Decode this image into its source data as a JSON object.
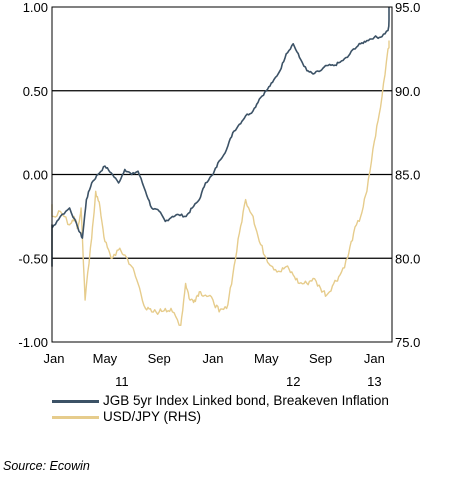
{
  "chart_data": {
    "type": "line",
    "x_tick_labels": [
      "Jan",
      "May",
      "Sep",
      "Jan",
      "May",
      "Sep",
      "Jan"
    ],
    "year_labels": [
      "11",
      "12",
      "13"
    ],
    "left_axis": {
      "ylim": [
        -1.0,
        1.0
      ],
      "ticks": [
        "1.00",
        "0.50",
        "0.00",
        "-0.50",
        "-1.00"
      ]
    },
    "right_axis": {
      "ylim": [
        75.0,
        95.0
      ],
      "ticks": [
        "95.0",
        "90.0",
        "85.0",
        "80.0",
        "75.0"
      ]
    },
    "gridlines_at": [
      0.5,
      0.0,
      -0.5
    ],
    "series": [
      {
        "name": "JGB 5yr Index Linked bond, Breakeven Inflation",
        "axis": "left",
        "color": "#3c5266",
        "x": [
          "2010-11-01",
          "2010-11-20",
          "2010-12-10",
          "2011-01-01",
          "2011-01-20",
          "2011-02-10",
          "2011-03-01",
          "2011-03-11",
          "2011-03-20",
          "2011-04-01",
          "2011-04-15",
          "2011-05-01",
          "2011-05-15",
          "2011-06-01",
          "2011-06-15",
          "2011-07-01",
          "2011-07-15",
          "2011-08-01",
          "2011-08-15",
          "2011-09-01",
          "2011-09-15",
          "2011-10-01",
          "2011-10-15",
          "2011-11-01",
          "2011-11-15",
          "2011-12-01",
          "2011-12-15",
          "2012-01-01",
          "2012-01-15",
          "2012-02-01",
          "2012-02-15",
          "2012-03-01",
          "2012-03-15",
          "2012-04-01",
          "2012-04-15",
          "2012-05-01",
          "2012-05-15",
          "2012-06-01",
          "2012-06-15",
          "2012-07-01",
          "2012-07-15",
          "2012-08-01",
          "2012-08-15",
          "2012-09-01",
          "2012-09-15",
          "2012-10-01",
          "2012-10-15",
          "2012-11-01",
          "2012-11-15",
          "2012-12-01",
          "2012-12-15",
          "2013-01-01",
          "2013-01-15",
          "2013-02-01",
          "2013-02-10"
        ],
        "values": [
          -0.55,
          -0.4,
          -0.3,
          -0.32,
          -0.25,
          -0.2,
          -0.32,
          -0.38,
          -0.15,
          -0.05,
          0.0,
          0.05,
          0.01,
          -0.05,
          0.03,
          0.0,
          0.02,
          -0.1,
          -0.2,
          -0.22,
          -0.28,
          -0.25,
          -0.24,
          -0.25,
          -0.2,
          -0.15,
          -0.05,
          0.0,
          0.08,
          0.15,
          0.25,
          0.3,
          0.35,
          0.38,
          0.45,
          0.5,
          0.55,
          0.62,
          0.72,
          0.78,
          0.7,
          0.62,
          0.6,
          0.62,
          0.65,
          0.65,
          0.67,
          0.7,
          0.75,
          0.78,
          0.8,
          0.82,
          0.82,
          0.86,
          1.0
        ]
      },
      {
        "name": "USD/JPY (RHS)",
        "axis": "right",
        "color": "#e6cc8c",
        "x": [
          "2010-11-01",
          "2010-11-20",
          "2010-12-10",
          "2011-01-01",
          "2011-01-20",
          "2011-02-10",
          "2011-02-20",
          "2011-03-01",
          "2011-03-08",
          "2011-03-17",
          "2011-04-01",
          "2011-04-10",
          "2011-04-20",
          "2011-05-01",
          "2011-05-15",
          "2011-06-01",
          "2011-06-15",
          "2011-07-01",
          "2011-07-15",
          "2011-08-01",
          "2011-08-15",
          "2011-09-01",
          "2011-09-15",
          "2011-10-01",
          "2011-10-20",
          "2011-10-31",
          "2011-11-10",
          "2011-11-20",
          "2011-12-01",
          "2011-12-15",
          "2012-01-01",
          "2012-01-15",
          "2012-02-01",
          "2012-02-15",
          "2012-03-01",
          "2012-03-15",
          "2012-04-01",
          "2012-04-15",
          "2012-05-01",
          "2012-05-15",
          "2012-06-01",
          "2012-06-15",
          "2012-07-01",
          "2012-07-15",
          "2012-08-01",
          "2012-08-15",
          "2012-09-01",
          "2012-09-15",
          "2012-10-01",
          "2012-10-15",
          "2012-11-01",
          "2012-11-15",
          "2012-12-01",
          "2012-12-15",
          "2013-01-01",
          "2013-01-15",
          "2013-02-01",
          "2013-02-10"
        ],
        "values": [
          83.0,
          82.8,
          83.2,
          82.5,
          82.8,
          82.0,
          82.5,
          81.8,
          83.0,
          77.5,
          81.2,
          84.0,
          83.0,
          81.0,
          80.0,
          80.5,
          80.2,
          79.5,
          78.5,
          77.0,
          76.8,
          76.8,
          77.0,
          76.8,
          76.0,
          78.5,
          77.5,
          77.5,
          78.0,
          77.8,
          77.5,
          76.8,
          77.0,
          79.0,
          81.5,
          83.5,
          82.5,
          81.0,
          80.0,
          79.5,
          79.2,
          79.5,
          79.0,
          78.5,
          78.5,
          78.8,
          78.2,
          77.8,
          78.5,
          79.0,
          80.0,
          81.5,
          82.5,
          84.0,
          87.0,
          89.0,
          92.5,
          93.0
        ]
      }
    ]
  },
  "legend": [
    {
      "label": "JGB 5yr Index Linked bond, Breakeven Inflation",
      "color": "#3c5266"
    },
    {
      "label": "USD/JPY (RHS)",
      "color": "#e6cc8c"
    }
  ],
  "source": "Source: Ecowin"
}
